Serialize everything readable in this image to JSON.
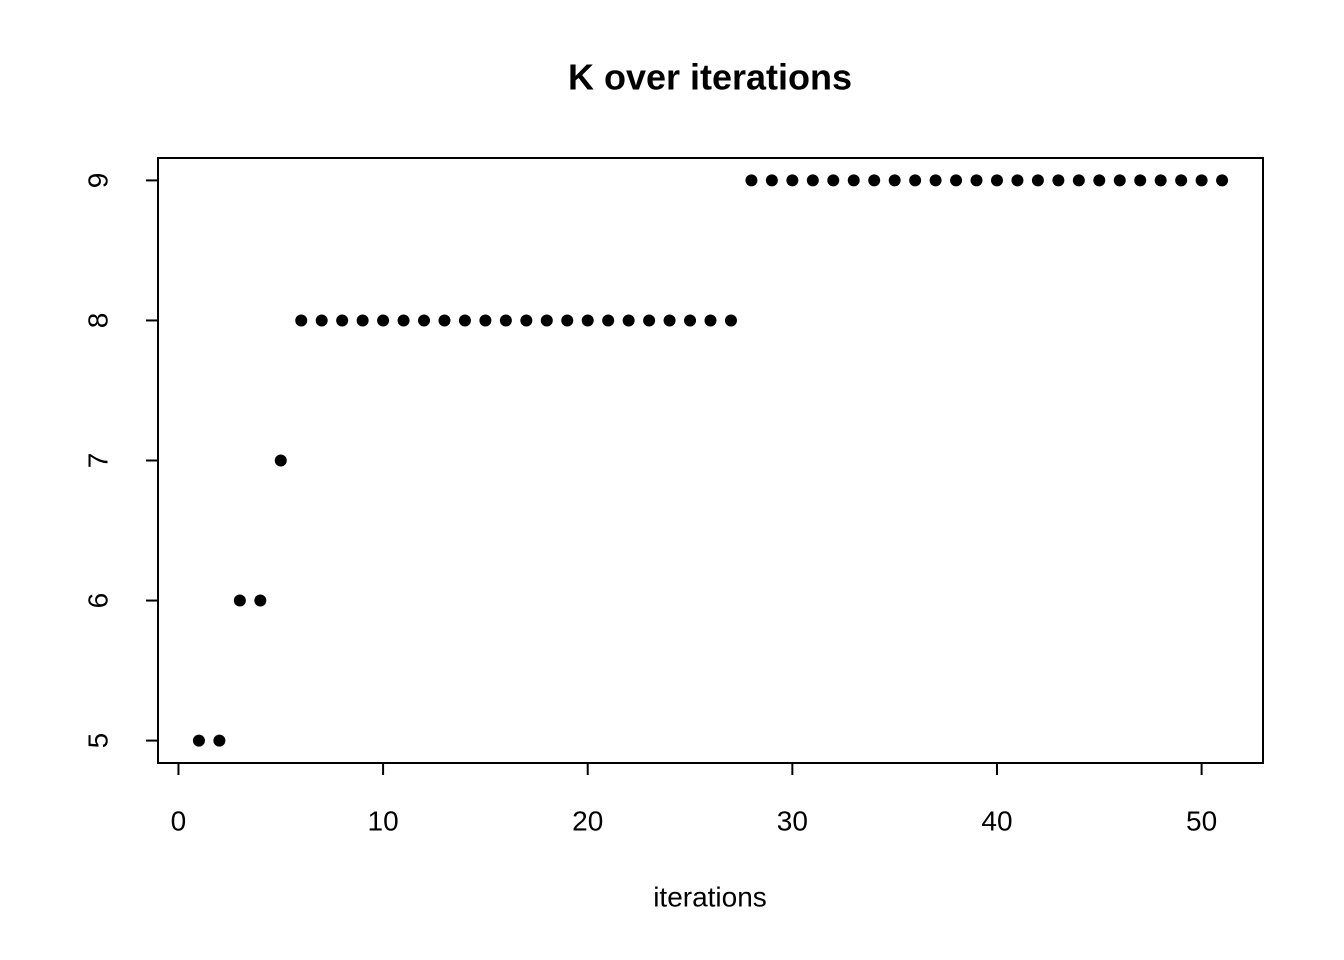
{
  "chart_data": {
    "type": "scatter",
    "title": "K over iterations",
    "x_label": "iterations",
    "x": [
      1,
      2,
      3,
      4,
      5,
      6,
      7,
      8,
      9,
      10,
      11,
      12,
      13,
      14,
      15,
      16,
      17,
      18,
      19,
      20,
      21,
      22,
      23,
      24,
      25,
      26,
      27,
      28,
      29,
      30,
      31,
      32,
      33,
      34,
      35,
      36,
      37,
      38,
      39,
      40,
      41,
      42,
      43,
      44,
      45,
      46,
      47,
      48,
      49,
      50,
      51
    ],
    "values": [
      5,
      5,
      6,
      6,
      7,
      8,
      8,
      8,
      8,
      8,
      8,
      8,
      8,
      8,
      8,
      8,
      8,
      8,
      8,
      8,
      8,
      8,
      8,
      8,
      8,
      8,
      8,
      9,
      9,
      9,
      9,
      9,
      9,
      9,
      9,
      9,
      9,
      9,
      9,
      9,
      9,
      9,
      9,
      9,
      9,
      9,
      9,
      9,
      9,
      9,
      9
    ],
    "color": "#000000",
    "xlim": [
      -1,
      53
    ],
    "ylim": [
      4.84,
      9.16
    ],
    "xticks": [
      0,
      10,
      20,
      30,
      40,
      50
    ],
    "yticks": [
      5,
      6,
      7,
      8,
      9
    ],
    "grid": false
  }
}
